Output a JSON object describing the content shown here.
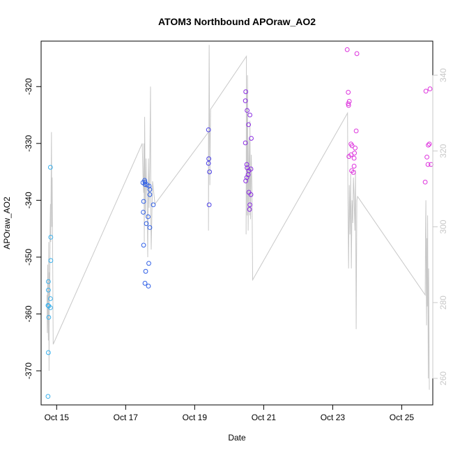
{
  "chart_data": {
    "type": "scatter",
    "title": "ATOM3 Northbound APOraw_AO2",
    "xlabel": "Date",
    "ylabel": "APOraw_AO2",
    "x_ticks": [
      "Oct 15",
      "Oct 17",
      "Oct 19",
      "Oct 21",
      "Oct 23",
      "Oct 25"
    ],
    "x_tick_days": [
      15,
      17,
      19,
      21,
      23,
      25
    ],
    "xlim_days": [
      14.55,
      25.9
    ],
    "ylim": [
      -376,
      -312
    ],
    "y_ticks": [
      -370,
      -360,
      -350,
      -340,
      -330,
      -320
    ],
    "y2lim": [
      253,
      349
    ],
    "y2_ticks": [
      260,
      280,
      300,
      320,
      340
    ],
    "series": [
      {
        "color": "#39b0ec",
        "points": [
          [
            14.75,
            -374.5
          ],
          [
            14.76,
            -366.8
          ],
          [
            14.77,
            -360.6
          ],
          [
            14.75,
            -358.5
          ],
          [
            14.77,
            -358.6
          ],
          [
            14.76,
            -355.8
          ],
          [
            14.76,
            -354.3
          ],
          [
            14.82,
            -357.3
          ],
          [
            14.82,
            -358.9
          ],
          [
            14.83,
            -350.6
          ],
          [
            14.83,
            -346.5
          ],
          [
            14.82,
            -334.2
          ]
        ]
      },
      {
        "color": "#2f5fe6",
        "points": [
          [
            17.5,
            -336.9
          ],
          [
            17.55,
            -336.5
          ],
          [
            17.56,
            -336.8
          ],
          [
            17.56,
            -337.2
          ],
          [
            17.62,
            -337.3
          ],
          [
            17.68,
            -337.5
          ],
          [
            17.7,
            -338.1
          ],
          [
            17.7,
            -339.0
          ],
          [
            17.52,
            -340.2
          ],
          [
            17.8,
            -340.8
          ],
          [
            17.51,
            -342.1
          ],
          [
            17.65,
            -342.9
          ],
          [
            17.6,
            -344.1
          ],
          [
            17.7,
            -344.8
          ],
          [
            17.52,
            -347.9
          ],
          [
            17.67,
            -351.1
          ],
          [
            17.58,
            -352.5
          ],
          [
            17.56,
            -354.6
          ],
          [
            17.66,
            -355.1
          ]
        ]
      },
      {
        "color": "#4a3ee6",
        "points": [
          [
            19.4,
            -327.6
          ],
          [
            19.41,
            -332.7
          ],
          [
            19.4,
            -333.5
          ],
          [
            19.43,
            -335.0
          ],
          [
            19.42,
            -340.8
          ]
        ]
      },
      {
        "color": "#8a2be2",
        "points": [
          [
            20.48,
            -320.9
          ],
          [
            20.47,
            -322.5
          ],
          [
            20.52,
            -324.2
          ],
          [
            20.6,
            -325.0
          ],
          [
            20.56,
            -326.7
          ],
          [
            20.64,
            -329.1
          ],
          [
            20.47,
            -329.9
          ],
          [
            20.51,
            -333.7
          ],
          [
            20.52,
            -334.3
          ],
          [
            20.63,
            -334.5
          ],
          [
            20.57,
            -334.8
          ],
          [
            20.55,
            -335.5
          ],
          [
            20.51,
            -336.0
          ],
          [
            20.48,
            -336.6
          ],
          [
            20.57,
            -338.6
          ],
          [
            20.63,
            -339.0
          ],
          [
            20.6,
            -340.8
          ],
          [
            20.59,
            -341.6
          ]
        ]
      },
      {
        "color": "#dd33dd",
        "points": [
          [
            23.42,
            -313.5
          ],
          [
            23.7,
            -314.2
          ],
          [
            23.45,
            -321.0
          ],
          [
            23.48,
            -322.6
          ],
          [
            23.45,
            -323.0
          ],
          [
            23.46,
            -323.3
          ],
          [
            23.68,
            -327.8
          ],
          [
            23.53,
            -330.1
          ],
          [
            23.56,
            -330.4
          ],
          [
            23.65,
            -330.8
          ],
          [
            23.63,
            -331.7
          ],
          [
            23.53,
            -332.0
          ],
          [
            23.47,
            -332.3
          ],
          [
            23.62,
            -332.6
          ],
          [
            23.62,
            -334.0
          ],
          [
            23.55,
            -334.8
          ],
          [
            23.6,
            -335.1
          ],
          [
            25.82,
            -320.4
          ],
          [
            25.7,
            -320.8
          ],
          [
            25.8,
            -330.1
          ],
          [
            25.77,
            -330.3
          ],
          [
            25.73,
            -332.4
          ],
          [
            25.76,
            -333.7
          ],
          [
            25.85,
            -333.7
          ],
          [
            25.68,
            -336.8
          ]
        ]
      }
    ],
    "secondary_line": {
      "color": "#c8c8c8",
      "points": [
        [
          14.72,
          282
        ],
        [
          14.73,
          272
        ],
        [
          14.74,
          290
        ],
        [
          14.75,
          276
        ],
        [
          14.76,
          270
        ],
        [
          14.77,
          296
        ],
        [
          14.78,
          262
        ],
        [
          14.79,
          288
        ],
        [
          14.8,
          281
        ],
        [
          14.81,
          300
        ],
        [
          14.82,
          306
        ],
        [
          14.83,
          296
        ],
        [
          14.84,
          312
        ],
        [
          14.85,
          325
        ],
        [
          14.86,
          300
        ],
        [
          14.87,
          313
        ],
        [
          14.88,
          299
        ],
        [
          14.9,
          269
        ],
        [
          17.48,
          322
        ],
        [
          17.5,
          314
        ],
        [
          17.52,
          309
        ],
        [
          17.53,
          322
        ],
        [
          17.54,
          296
        ],
        [
          17.55,
          329
        ],
        [
          17.56,
          316
        ],
        [
          17.57,
          303
        ],
        [
          17.59,
          318
        ],
        [
          17.6,
          312
        ],
        [
          17.62,
          308
        ],
        [
          17.64,
          292
        ],
        [
          17.66,
          318
        ],
        [
          17.68,
          305
        ],
        [
          17.7,
          317
        ],
        [
          17.72,
          337
        ],
        [
          17.73,
          302
        ],
        [
          17.74,
          294
        ],
        [
          17.76,
          303
        ],
        [
          17.78,
          312
        ],
        [
          17.85,
          306
        ],
        [
          19.4,
          325
        ],
        [
          19.4,
          299
        ],
        [
          19.42,
          348
        ],
        [
          19.44,
          311
        ],
        [
          19.46,
          331
        ],
        [
          20.5,
          345
        ],
        [
          20.49,
          298
        ],
        [
          20.5,
          318
        ],
        [
          20.51,
          336
        ],
        [
          20.52,
          303
        ],
        [
          20.53,
          340
        ],
        [
          20.55,
          299
        ],
        [
          20.57,
          323
        ],
        [
          20.59,
          303
        ],
        [
          20.6,
          328
        ],
        [
          20.62,
          302
        ],
        [
          20.64,
          319
        ],
        [
          20.66,
          310
        ],
        [
          20.68,
          286
        ],
        [
          23.43,
          330
        ],
        [
          23.44,
          308
        ],
        [
          23.46,
          289
        ],
        [
          23.48,
          311
        ],
        [
          23.5,
          298
        ],
        [
          23.52,
          314
        ],
        [
          23.54,
          289
        ],
        [
          23.56,
          307
        ],
        [
          23.58,
          301
        ],
        [
          23.6,
          313
        ],
        [
          23.62,
          308
        ],
        [
          23.64,
          299
        ],
        [
          23.66,
          315
        ],
        [
          23.68,
          273
        ],
        [
          23.7,
          307
        ],
        [
          23.72,
          308
        ],
        [
          25.68,
          282
        ],
        [
          25.69,
          298
        ],
        [
          25.7,
          307
        ],
        [
          25.71,
          285
        ],
        [
          25.72,
          274
        ],
        [
          25.73,
          297
        ],
        [
          25.74,
          279
        ],
        [
          25.75,
          303
        ],
        [
          25.76,
          282
        ],
        [
          25.77,
          260
        ],
        [
          25.78,
          289
        ],
        [
          25.8,
          257
        ]
      ]
    }
  }
}
